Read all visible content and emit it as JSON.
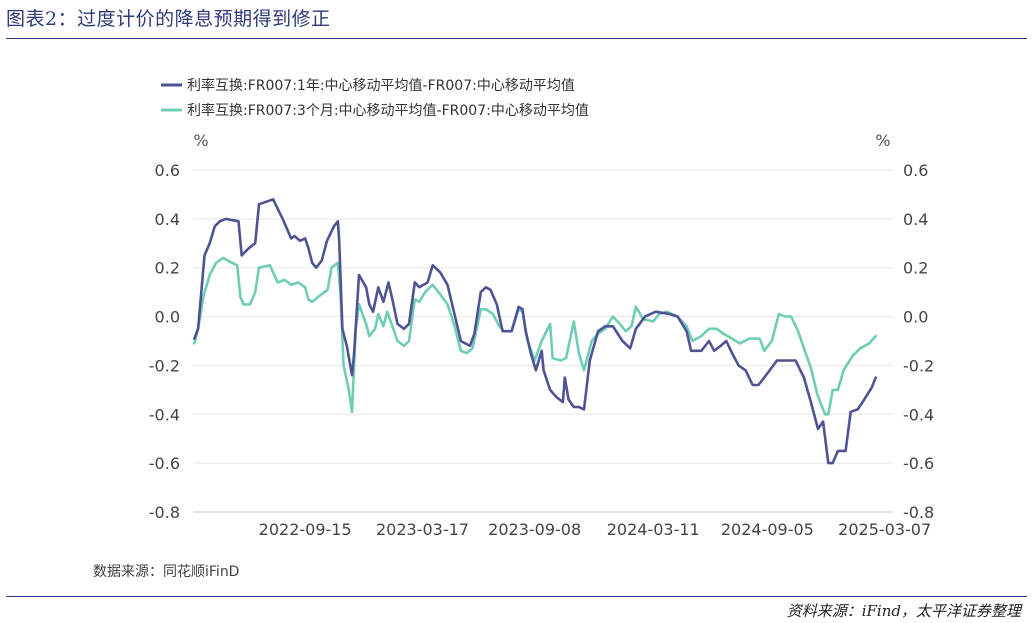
{
  "figure": {
    "title": "图表2：过度计价的降息预期得到修正",
    "source_inner": "数据来源：同花顺iFinD",
    "source_footer": "资料来源：iFind，太平洋证券整理"
  },
  "colors": {
    "series_1y": "#4f5394",
    "series_3m": "#6fcdb5",
    "accent": "#2f3a7a",
    "grid": "#e6e6e6"
  },
  "chart_data": {
    "type": "line",
    "title": "",
    "y_unit_left": "%",
    "y_unit_right": "%",
    "ylim": [
      -0.8,
      0.6
    ],
    "yticks": [
      "0.6",
      "0.4",
      "0.2",
      "0.0",
      "-0.2",
      "-0.4",
      "-0.6",
      "-0.8"
    ],
    "ytick_values": [
      0.6,
      0.4,
      0.2,
      0.0,
      -0.2,
      -0.4,
      -0.6,
      -0.8
    ],
    "xlim": [
      "2022-03-24",
      "2025-03-20"
    ],
    "xticks": [
      "2022-09-15",
      "2023-03-17",
      "2023-09-08",
      "2024-03-11",
      "2024-09-05",
      "2025-03-07"
    ],
    "grid": "horizontal",
    "legend_position": "top-left",
    "series": [
      {
        "name": "利率互换:FR007:1年:中心移动平均值-FR007:中心移动平均值",
        "color": "#4f5394",
        "points": [
          [
            "2022-03-26",
            -0.09
          ],
          [
            "2022-04-01",
            -0.05
          ],
          [
            "2022-04-06",
            0.1
          ],
          [
            "2022-04-11",
            0.25
          ],
          [
            "2022-04-19",
            0.3
          ],
          [
            "2022-04-27",
            0.37
          ],
          [
            "2022-05-05",
            0.39
          ],
          [
            "2022-05-14",
            0.4
          ],
          [
            "2022-06-03",
            0.39
          ],
          [
            "2022-06-08",
            0.25
          ],
          [
            "2022-06-19",
            0.28
          ],
          [
            "2022-06-29",
            0.3
          ],
          [
            "2022-07-05",
            0.46
          ],
          [
            "2022-07-16",
            0.47
          ],
          [
            "2022-07-27",
            0.48
          ],
          [
            "2022-08-11",
            0.4
          ],
          [
            "2022-08-24",
            0.32
          ],
          [
            "2022-08-29",
            0.33
          ],
          [
            "2022-09-07",
            0.31
          ],
          [
            "2022-09-15",
            0.32
          ],
          [
            "2022-09-20",
            0.28
          ],
          [
            "2022-09-26",
            0.22
          ],
          [
            "2022-10-02",
            0.2
          ],
          [
            "2022-10-11",
            0.23
          ],
          [
            "2022-10-19",
            0.31
          ],
          [
            "2022-10-30",
            0.37
          ],
          [
            "2022-11-05",
            0.39
          ],
          [
            "2022-11-07",
            0.31
          ],
          [
            "2022-11-12",
            -0.05
          ],
          [
            "2022-11-19",
            -0.12
          ],
          [
            "2022-11-27",
            -0.24
          ],
          [
            "2022-11-30",
            -0.16
          ],
          [
            "2022-12-08",
            0.17
          ],
          [
            "2022-12-19",
            0.12
          ],
          [
            "2022-12-24",
            0.05
          ],
          [
            "2022-12-30",
            0.02
          ],
          [
            "2023-01-07",
            0.12
          ],
          [
            "2023-01-15",
            0.06
          ],
          [
            "2023-01-23",
            0.14
          ],
          [
            "2023-01-29",
            0.07
          ],
          [
            "2023-02-06",
            -0.03
          ],
          [
            "2023-02-16",
            -0.05
          ],
          [
            "2023-02-24",
            -0.03
          ],
          [
            "2023-03-05",
            0.14
          ],
          [
            "2023-03-12",
            0.12
          ],
          [
            "2023-03-25",
            0.14
          ],
          [
            "2023-04-02",
            0.21
          ],
          [
            "2023-04-14",
            0.18
          ],
          [
            "2023-04-25",
            0.13
          ],
          [
            "2023-05-05",
            0.02
          ],
          [
            "2023-05-16",
            -0.1
          ],
          [
            "2023-05-30",
            -0.12
          ],
          [
            "2023-06-06",
            -0.07
          ],
          [
            "2023-06-16",
            0.1
          ],
          [
            "2023-06-24",
            0.12
          ],
          [
            "2023-07-01",
            0.11
          ],
          [
            "2023-07-11",
            0.05
          ],
          [
            "2023-07-20",
            -0.06
          ],
          [
            "2023-07-30",
            -0.06
          ],
          [
            "2023-08-03",
            -0.06
          ],
          [
            "2023-08-14",
            0.04
          ],
          [
            "2023-08-20",
            0.03
          ],
          [
            "2023-08-25",
            -0.06
          ],
          [
            "2023-09-02",
            -0.15
          ],
          [
            "2023-09-10",
            -0.22
          ],
          [
            "2023-09-19",
            -0.14
          ],
          [
            "2023-09-22",
            -0.22
          ],
          [
            "2023-10-02",
            -0.3
          ],
          [
            "2023-10-12",
            -0.33
          ],
          [
            "2023-10-22",
            -0.35
          ],
          [
            "2023-10-25",
            -0.25
          ],
          [
            "2023-10-31",
            -0.34
          ],
          [
            "2023-11-08",
            -0.37
          ],
          [
            "2023-11-16",
            -0.37
          ],
          [
            "2023-11-24",
            -0.38
          ],
          [
            "2023-12-03",
            -0.18
          ],
          [
            "2023-12-16",
            -0.06
          ],
          [
            "2023-12-27",
            -0.04
          ],
          [
            "2024-01-08",
            -0.04
          ],
          [
            "2024-01-23",
            -0.1
          ],
          [
            "2024-02-04",
            -0.13
          ],
          [
            "2024-02-13",
            -0.05
          ],
          [
            "2024-02-27",
            0.0
          ],
          [
            "2024-03-15",
            0.02
          ],
          [
            "2024-04-06",
            0.01
          ],
          [
            "2024-04-18",
            0.0
          ],
          [
            "2024-05-02",
            -0.06
          ],
          [
            "2024-05-09",
            -0.14
          ],
          [
            "2024-05-25",
            -0.14
          ],
          [
            "2024-06-06",
            -0.1
          ],
          [
            "2024-06-14",
            -0.14
          ],
          [
            "2024-06-24",
            -0.12
          ],
          [
            "2024-07-03",
            -0.1
          ],
          [
            "2024-07-12",
            -0.15
          ],
          [
            "2024-07-22",
            -0.2
          ],
          [
            "2024-08-02",
            -0.22
          ],
          [
            "2024-08-13",
            -0.28
          ],
          [
            "2024-08-22",
            -0.28
          ],
          [
            "2024-08-31",
            -0.25
          ],
          [
            "2024-09-20",
            -0.18
          ],
          [
            "2024-10-19",
            -0.18
          ],
          [
            "2024-11-01",
            -0.25
          ],
          [
            "2024-11-12",
            -0.35
          ],
          [
            "2024-11-23",
            -0.46
          ],
          [
            "2024-12-01",
            -0.43
          ],
          [
            "2024-12-09",
            -0.6
          ],
          [
            "2024-12-16",
            -0.6
          ],
          [
            "2024-12-24",
            -0.55
          ],
          [
            "2025-01-05",
            -0.55
          ],
          [
            "2025-01-13",
            -0.39
          ],
          [
            "2025-01-24",
            -0.38
          ],
          [
            "2025-02-03",
            -0.34
          ],
          [
            "2025-02-15",
            -0.29
          ],
          [
            "2025-02-21",
            -0.25
          ]
        ]
      },
      {
        "name": "利率互换:FR007:3个月:中心移动平均值-FR007:中心移动平均值",
        "color": "#6fcdb5",
        "points": [
          [
            "2022-03-26",
            -0.11
          ],
          [
            "2022-04-01",
            -0.05
          ],
          [
            "2022-04-09",
            0.08
          ],
          [
            "2022-04-19",
            0.17
          ],
          [
            "2022-04-29",
            0.22
          ],
          [
            "2022-05-10",
            0.24
          ],
          [
            "2022-05-24",
            0.22
          ],
          [
            "2022-06-01",
            0.21
          ],
          [
            "2022-06-06",
            0.08
          ],
          [
            "2022-06-11",
            0.05
          ],
          [
            "2022-06-21",
            0.05
          ],
          [
            "2022-06-29",
            0.1
          ],
          [
            "2022-07-05",
            0.2
          ],
          [
            "2022-07-22",
            0.21
          ],
          [
            "2022-08-03",
            0.14
          ],
          [
            "2022-08-14",
            0.15
          ],
          [
            "2022-08-24",
            0.13
          ],
          [
            "2022-09-04",
            0.14
          ],
          [
            "2022-09-15",
            0.12
          ],
          [
            "2022-09-20",
            0.07
          ],
          [
            "2022-09-26",
            0.06
          ],
          [
            "2022-10-05",
            0.08
          ],
          [
            "2022-10-20",
            0.11
          ],
          [
            "2022-10-26",
            0.2
          ],
          [
            "2022-11-05",
            0.22
          ],
          [
            "2022-11-09",
            0.1
          ],
          [
            "2022-11-14",
            -0.2
          ],
          [
            "2022-11-22",
            -0.3
          ],
          [
            "2022-11-27",
            -0.39
          ],
          [
            "2022-12-03",
            -0.05
          ],
          [
            "2022-12-08",
            0.05
          ],
          [
            "2022-12-19",
            -0.03
          ],
          [
            "2022-12-24",
            -0.08
          ],
          [
            "2023-01-02",
            -0.05
          ],
          [
            "2023-01-07",
            0.01
          ],
          [
            "2023-01-15",
            -0.04
          ],
          [
            "2023-01-21",
            0.02
          ],
          [
            "2023-01-29",
            -0.04
          ],
          [
            "2023-02-06",
            -0.1
          ],
          [
            "2023-02-16",
            -0.12
          ],
          [
            "2023-02-24",
            -0.1
          ],
          [
            "2023-03-05",
            0.07
          ],
          [
            "2023-03-12",
            0.06
          ],
          [
            "2023-03-21",
            0.1
          ],
          [
            "2023-04-02",
            0.13
          ],
          [
            "2023-04-14",
            0.09
          ],
          [
            "2023-04-25",
            0.05
          ],
          [
            "2023-05-05",
            -0.03
          ],
          [
            "2023-05-16",
            -0.14
          ],
          [
            "2023-05-25",
            -0.15
          ],
          [
            "2023-06-03",
            -0.13
          ],
          [
            "2023-06-16",
            0.03
          ],
          [
            "2023-06-24",
            0.03
          ],
          [
            "2023-07-05",
            0.01
          ],
          [
            "2023-07-15",
            -0.04
          ],
          [
            "2023-07-22",
            -0.06
          ],
          [
            "2023-08-03",
            -0.06
          ],
          [
            "2023-08-14",
            0.03
          ],
          [
            "2023-08-20",
            0.02
          ],
          [
            "2023-08-28",
            -0.1
          ],
          [
            "2023-09-08",
            -0.18
          ],
          [
            "2023-09-19",
            -0.1
          ],
          [
            "2023-10-02",
            -0.03
          ],
          [
            "2023-10-06",
            -0.17
          ],
          [
            "2023-10-19",
            -0.18
          ],
          [
            "2023-10-27",
            -0.17
          ],
          [
            "2023-11-08",
            -0.02
          ],
          [
            "2023-11-16",
            -0.15
          ],
          [
            "2023-11-24",
            -0.22
          ],
          [
            "2023-12-06",
            -0.1
          ],
          [
            "2023-12-16",
            -0.07
          ],
          [
            "2023-12-27",
            -0.05
          ],
          [
            "2024-01-08",
            0.0
          ],
          [
            "2024-01-19",
            -0.03
          ],
          [
            "2024-01-28",
            -0.06
          ],
          [
            "2024-02-06",
            -0.04
          ],
          [
            "2024-02-13",
            0.04
          ],
          [
            "2024-02-24",
            -0.01
          ],
          [
            "2024-03-11",
            -0.02
          ],
          [
            "2024-03-20",
            0.01
          ],
          [
            "2024-04-01",
            0.02
          ],
          [
            "2024-04-18",
            0.0
          ],
          [
            "2024-05-02",
            -0.04
          ],
          [
            "2024-05-11",
            -0.1
          ],
          [
            "2024-05-25",
            -0.08
          ],
          [
            "2024-06-06",
            -0.05
          ],
          [
            "2024-06-18",
            -0.05
          ],
          [
            "2024-06-28",
            -0.07
          ],
          [
            "2024-07-12",
            -0.09
          ],
          [
            "2024-07-24",
            -0.11
          ],
          [
            "2024-08-08",
            -0.09
          ],
          [
            "2024-08-24",
            -0.09
          ],
          [
            "2024-08-31",
            -0.14
          ],
          [
            "2024-09-12",
            -0.1
          ],
          [
            "2024-09-23",
            0.01
          ],
          [
            "2024-10-03",
            0.0
          ],
          [
            "2024-10-12",
            0.0
          ],
          [
            "2024-10-23",
            -0.06
          ],
          [
            "2024-11-01",
            -0.13
          ],
          [
            "2024-11-12",
            -0.21
          ],
          [
            "2024-11-22",
            -0.32
          ],
          [
            "2024-12-04",
            -0.4
          ],
          [
            "2024-12-09",
            -0.4
          ],
          [
            "2024-12-16",
            -0.3
          ],
          [
            "2024-12-24",
            -0.3
          ],
          [
            "2025-01-02",
            -0.22
          ],
          [
            "2025-01-16",
            -0.16
          ],
          [
            "2025-01-28",
            -0.13
          ],
          [
            "2025-02-11",
            -0.11
          ],
          [
            "2025-02-21",
            -0.08
          ]
        ]
      }
    ]
  }
}
